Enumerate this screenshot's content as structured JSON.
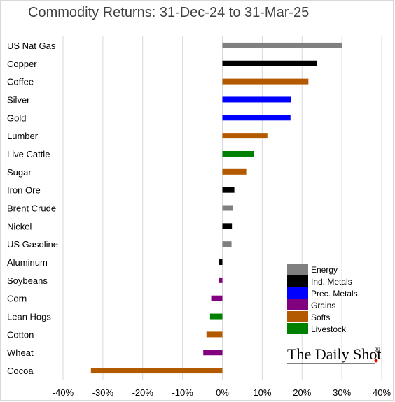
{
  "chart_data": {
    "type": "bar",
    "orientation": "horizontal",
    "title": "Commodity Returns: 31-Dec-24 to 31-Mar-25",
    "xlabel": "",
    "ylabel": "",
    "xlim": [
      -40,
      40
    ],
    "x_ticks": [
      -40,
      -30,
      -20,
      -10,
      0,
      10,
      20,
      30,
      40
    ],
    "x_tick_labels": [
      "-40%",
      "-30%",
      "-20%",
      "-10%",
      "0%",
      "10%",
      "20%",
      "30%",
      "40%"
    ],
    "grid": "vertical",
    "legend_position": "bottom-right",
    "categories": [
      "US Nat Gas",
      "Copper",
      "Coffee",
      "Silver",
      "Gold",
      "Lumber",
      "Live Cattle",
      "Sugar",
      "Iron Ore",
      "Brent Crude",
      "Nickel",
      "US Gasoline",
      "Aluminum",
      "Soybeans",
      "Corn",
      "Lean Hogs",
      "Cotton",
      "Wheat",
      "Cocoa"
    ],
    "values": [
      30.0,
      23.8,
      21.6,
      17.3,
      17.1,
      11.3,
      7.9,
      6.0,
      3.0,
      2.7,
      2.4,
      2.3,
      -0.8,
      -0.9,
      -2.8,
      -3.1,
      -4.0,
      -4.8,
      -33.0
    ],
    "groups": [
      "Energy",
      "Ind. Metals",
      "Softs",
      "Prec. Metals",
      "Prec. Metals",
      "Softs",
      "Livestock",
      "Softs",
      "Ind. Metals",
      "Energy",
      "Ind. Metals",
      "Energy",
      "Ind. Metals",
      "Grains",
      "Grains",
      "Livestock",
      "Softs",
      "Grains",
      "Softs"
    ],
    "legend": [
      {
        "name": "Energy",
        "color": "#808080"
      },
      {
        "name": "Ind. Metals",
        "color": "#000000"
      },
      {
        "name": "Prec. Metals",
        "color": "#0000ff"
      },
      {
        "name": "Grains",
        "color": "#800080"
      },
      {
        "name": "Softs",
        "color": "#b35a00"
      },
      {
        "name": "Livestock",
        "color": "#008000"
      }
    ]
  },
  "brand": {
    "name": "The Daily Shot",
    "mark": "®",
    "accent_color": "#e60000"
  }
}
